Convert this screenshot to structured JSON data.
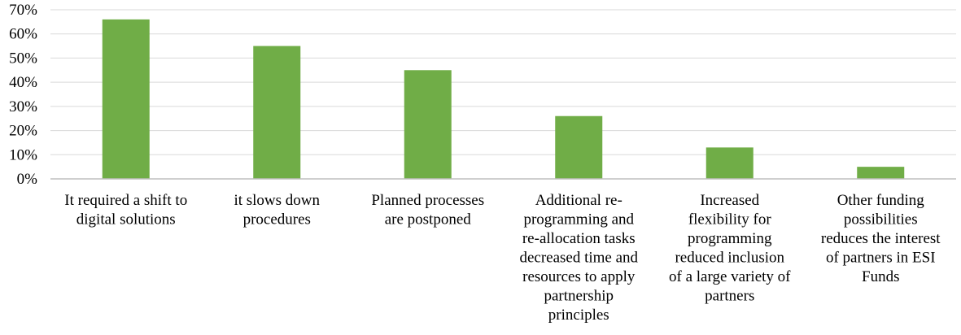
{
  "chart_data": {
    "type": "bar",
    "title": "",
    "xlabel": "",
    "ylabel": "",
    "ylim": [
      0,
      70
    ],
    "y_ticks": [
      "0%",
      "10%",
      "20%",
      "30%",
      "40%",
      "50%",
      "60%",
      "70%"
    ],
    "grid": true,
    "legend": "none",
    "bar_color": "#70ad47",
    "categories": [
      [
        "It required a shift to",
        "digital solutions"
      ],
      [
        "it slows down",
        "procedures"
      ],
      [
        "Planned processes",
        "are postponed"
      ],
      [
        "Additional re-",
        "programming and",
        "re-allocation tasks",
        "decreased time and",
        "resources to apply",
        "partnership",
        "principles"
      ],
      [
        "Increased",
        "flexibility for",
        "programming",
        "reduced inclusion",
        "of a large variety of",
        "partners"
      ],
      [
        "Other funding",
        "possibilities",
        "reduces the interest",
        "of partners in ESI",
        "Funds"
      ]
    ],
    "values": [
      66,
      55,
      45,
      26,
      13,
      5
    ]
  }
}
